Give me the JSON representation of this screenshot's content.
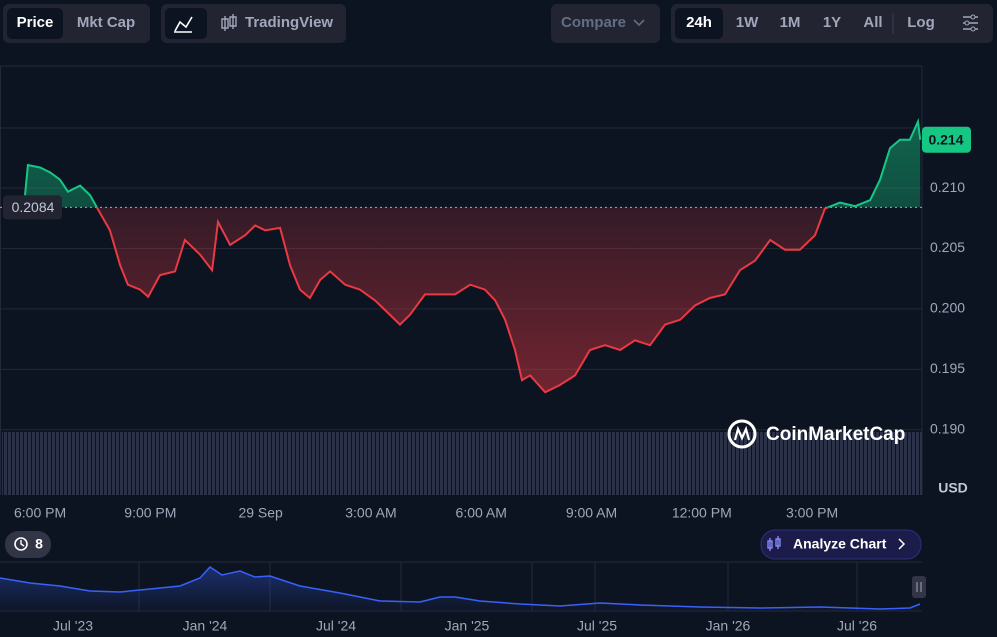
{
  "toolbar": {
    "price_tabs": [
      "Price",
      "Mkt Cap"
    ],
    "view": "TradingView",
    "compare": "Compare",
    "ranges": [
      "24h",
      "1W",
      "1M",
      "1Y",
      "All"
    ],
    "log": "Log"
  },
  "chart_data": {
    "type": "line",
    "x": [
      17.59,
      17.67,
      18.0,
      18.27,
      18.54,
      18.76,
      19.09,
      19.36,
      19.58,
      19.9,
      20.18,
      20.39,
      20.72,
      20.94,
      21.26,
      21.67,
      21.94,
      22.35,
      22.68,
      22.84,
      23.17,
      23.58,
      23.85,
      24.12,
      24.53,
      24.8,
      25.07,
      25.34,
      25.62,
      25.89,
      26.3,
      26.7,
      27.11,
      27.52,
      27.79,
      28.06,
      28.47,
      28.88,
      29.29,
      29.7,
      30.1,
      30.38,
      30.65,
      30.92,
      31.11,
      31.33,
      31.74,
      32.14,
      32.55,
      32.96,
      33.37,
      33.78,
      34.18,
      34.59,
      35.0,
      35.41,
      35.82,
      36.22,
      36.63,
      37.04,
      37.45,
      37.86,
      38.26,
      38.67,
      39.08,
      39.35,
      39.76,
      40.17,
      40.58,
      40.85,
      41.12,
      41.39,
      41.66,
      41.88,
      41.94
    ],
    "values": [
      0.2094,
      0.2119,
      0.2117,
      0.2113,
      0.2107,
      0.2097,
      0.2102,
      0.2094,
      0.2082,
      0.2065,
      0.2036,
      0.202,
      0.2016,
      0.201,
      0.2028,
      0.2031,
      0.2057,
      0.2045,
      0.2032,
      0.2072,
      0.2053,
      0.2061,
      0.2069,
      0.2065,
      0.2067,
      0.2036,
      0.2016,
      0.2009,
      0.2024,
      0.2031,
      0.202,
      0.2016,
      0.2007,
      0.1995,
      0.1987,
      0.1995,
      0.2012,
      0.2012,
      0.2012,
      0.202,
      0.2016,
      0.2007,
      0.1991,
      0.1966,
      0.1941,
      0.1945,
      0.1931,
      0.1937,
      0.1945,
      0.1966,
      0.197,
      0.1966,
      0.1974,
      0.197,
      0.1987,
      0.1991,
      0.2003,
      0.2009,
      0.2012,
      0.2032,
      0.204,
      0.2057,
      0.2049,
      0.2049,
      0.2061,
      0.2083,
      0.2088,
      0.2085,
      0.209,
      0.2107,
      0.2133,
      0.214,
      0.214,
      0.2155,
      0.214
    ],
    "up_color": "#16c784",
    "down_color": "#ea3943",
    "baseline": 0.2084,
    "last_value": 0.214,
    "xlim": [
      16.91,
      41.99
    ],
    "xticks": [
      {
        "value": 18,
        "label": "6:00 PM"
      },
      {
        "value": 21,
        "label": "9:00 PM"
      },
      {
        "value": 24,
        "label": "29 Sep"
      },
      {
        "value": 27,
        "label": "3:00 AM"
      },
      {
        "value": 30,
        "label": "6:00 AM"
      },
      {
        "value": 33,
        "label": "9:00 AM"
      },
      {
        "value": 36,
        "label": "12:00 PM"
      },
      {
        "value": 39,
        "label": "3:00 PM"
      }
    ],
    "ylim": [
      0.1846,
      0.2201
    ],
    "yticks": [
      {
        "value": 0.19,
        "label": "0.190"
      },
      0.195,
      {
        "value": 0.2,
        "label": "0.200"
      },
      0.205,
      {
        "value": 0.21,
        "label": "0.210"
      }
    ],
    "grid": true,
    "unit": "USD",
    "watermark": "CoinMarketCap"
  },
  "footer": {
    "badge": "8",
    "analyze": "Analyze Chart",
    "navigator_ticks": [
      "Jul '23",
      "Jan '24",
      "Jul '24",
      "Jan '25",
      "Jul '25",
      "Jan '26",
      "Jul '26"
    ]
  }
}
